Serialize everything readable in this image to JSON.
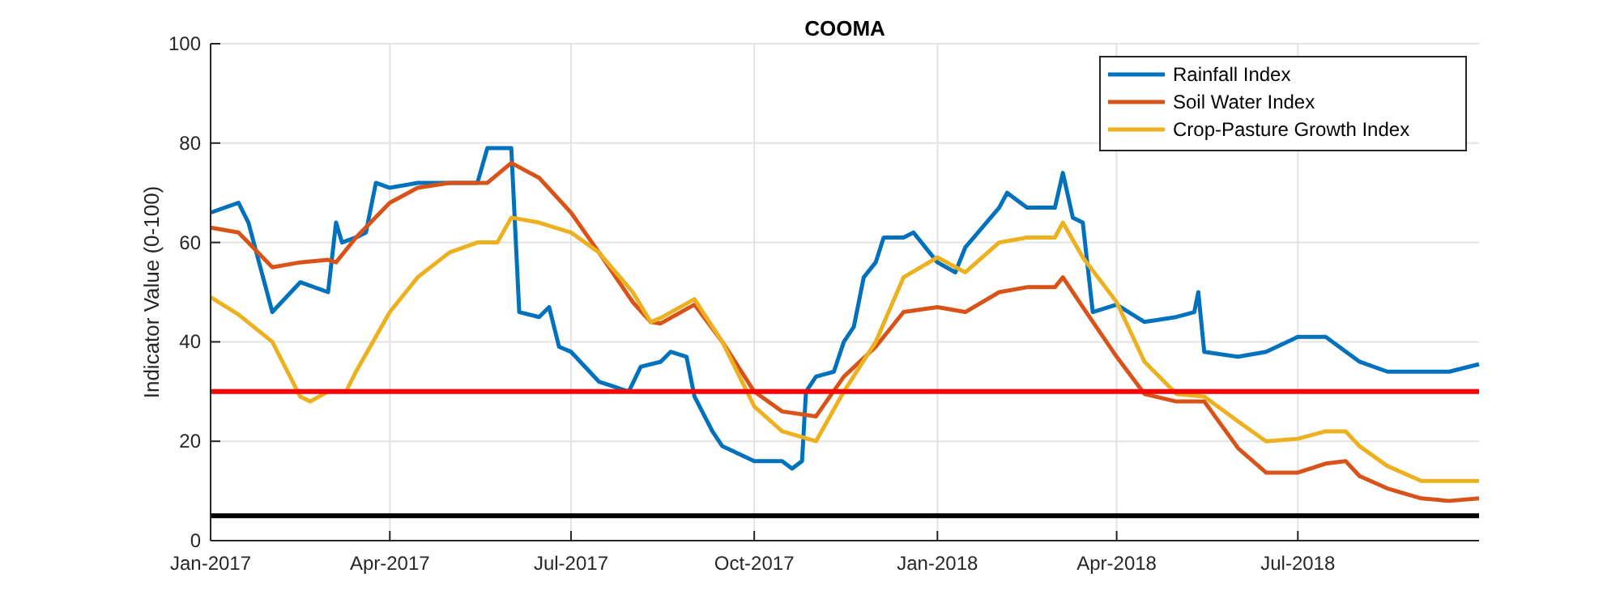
{
  "chart_data": {
    "type": "line",
    "title": "COOMA",
    "ylabel": "Indicator Value (0-100)",
    "xlim": [
      "2017-01-01",
      "2018-09-30"
    ],
    "xticks": [
      {
        "value": "2017-01-01",
        "label": "Jan-2017"
      },
      {
        "value": "2017-04-01",
        "label": "Apr-2017"
      },
      {
        "value": "2017-07-01",
        "label": "Jul-2017"
      },
      {
        "value": "2017-10-01",
        "label": "Oct-2017"
      },
      {
        "value": "2018-01-01",
        "label": "Jan-2018"
      },
      {
        "value": "2018-04-01",
        "label": "Apr-2018"
      },
      {
        "value": "2018-07-01",
        "label": "Jul-2018"
      }
    ],
    "ylim": [
      0,
      100
    ],
    "yticks": [
      0,
      20,
      40,
      60,
      80,
      100
    ],
    "grid": true,
    "legend": "top right",
    "line_style": "solid",
    "series": [
      {
        "name": "Rainfall Index",
        "color": "#0072bd",
        "x": [
          "2017-01-01",
          "2017-01-15",
          "2017-01-20",
          "2017-02-01",
          "2017-02-15",
          "2017-03-01",
          "2017-03-05",
          "2017-03-08",
          "2017-03-15",
          "2017-03-20",
          "2017-03-25",
          "2017-04-01",
          "2017-04-15",
          "2017-05-01",
          "2017-05-15",
          "2017-05-20",
          "2017-06-01",
          "2017-06-05",
          "2017-06-15",
          "2017-06-20",
          "2017-06-25",
          "2017-07-01",
          "2017-07-15",
          "2017-07-30",
          "2017-08-05",
          "2017-08-15",
          "2017-08-20",
          "2017-08-28",
          "2017-09-01",
          "2017-09-10",
          "2017-09-15",
          "2017-10-01",
          "2017-10-15",
          "2017-10-20",
          "2017-10-25",
          "2017-10-27",
          "2017-11-01",
          "2017-11-10",
          "2017-11-15",
          "2017-11-20",
          "2017-11-25",
          "2017-12-01",
          "2017-12-05",
          "2017-12-15",
          "2017-12-20",
          "2018-01-01",
          "2018-01-10",
          "2018-01-15",
          "2018-02-01",
          "2018-02-05",
          "2018-02-15",
          "2018-03-01",
          "2018-03-05",
          "2018-03-10",
          "2018-03-15",
          "2018-03-20",
          "2018-04-01",
          "2018-04-15",
          "2018-05-01",
          "2018-05-10",
          "2018-05-12",
          "2018-05-15",
          "2018-06-01",
          "2018-06-15",
          "2018-07-01",
          "2018-07-15",
          "2018-08-01",
          "2018-08-15",
          "2018-09-01",
          "2018-09-15",
          "2018-09-30"
        ],
        "values": [
          66,
          68,
          64,
          46,
          52,
          50,
          64,
          60,
          61,
          62,
          72,
          71,
          72,
          72,
          72,
          79,
          79,
          46,
          45,
          47,
          39,
          38,
          32,
          30,
          35,
          36,
          38,
          37,
          29,
          22,
          19,
          16,
          16,
          14.5,
          16,
          30,
          33,
          34,
          40,
          43,
          53,
          56,
          61,
          61,
          62,
          56,
          54,
          59,
          67,
          70,
          67,
          67,
          74,
          65,
          64,
          46,
          47.5,
          44,
          45,
          46,
          50,
          38,
          37,
          38,
          41,
          41,
          36,
          34,
          34,
          34,
          35.5
        ]
      },
      {
        "name": "Soil Water Index",
        "color": "#d95319",
        "x": [
          "2017-01-01",
          "2017-01-15",
          "2017-02-01",
          "2017-02-15",
          "2017-03-01",
          "2017-03-05",
          "2017-03-15",
          "2017-04-01",
          "2017-04-15",
          "2017-05-01",
          "2017-05-15",
          "2017-05-20",
          "2017-06-01",
          "2017-06-15",
          "2017-07-01",
          "2017-07-15",
          "2017-08-01",
          "2017-08-10",
          "2017-08-15",
          "2017-09-01",
          "2017-09-15",
          "2017-10-01",
          "2017-10-15",
          "2017-11-01",
          "2017-11-15",
          "2017-12-01",
          "2017-12-15",
          "2018-01-01",
          "2018-01-15",
          "2018-02-01",
          "2018-02-15",
          "2018-03-01",
          "2018-03-05",
          "2018-03-15",
          "2018-04-01",
          "2018-04-15",
          "2018-05-01",
          "2018-05-15",
          "2018-06-01",
          "2018-06-15",
          "2018-07-01",
          "2018-07-15",
          "2018-07-25",
          "2018-08-01",
          "2018-08-15",
          "2018-09-01",
          "2018-09-15",
          "2018-09-30"
        ],
        "values": [
          63,
          62,
          55,
          56,
          56.5,
          56,
          61,
          68,
          71,
          72,
          72,
          72,
          76,
          73,
          66,
          58,
          48,
          44,
          43.7,
          47.5,
          40,
          30,
          26,
          25,
          33,
          39,
          46,
          47,
          46,
          50,
          51,
          51,
          53,
          47,
          37,
          29.5,
          28,
          28,
          18.6,
          13.7,
          13.7,
          15.5,
          16,
          13,
          10.5,
          8.5,
          8,
          8.5
        ]
      },
      {
        "name": "Crop-Pasture Growth Index",
        "color": "#edb120",
        "x": [
          "2017-01-01",
          "2017-01-15",
          "2017-02-01",
          "2017-02-15",
          "2017-02-20",
          "2017-03-01",
          "2017-03-10",
          "2017-03-15",
          "2017-04-01",
          "2017-04-15",
          "2017-05-01",
          "2017-05-15",
          "2017-05-25",
          "2017-06-01",
          "2017-06-15",
          "2017-07-01",
          "2017-07-15",
          "2017-08-01",
          "2017-08-10",
          "2017-08-15",
          "2017-09-01",
          "2017-09-15",
          "2017-10-01",
          "2017-10-15",
          "2017-11-01",
          "2017-11-15",
          "2017-12-01",
          "2017-12-15",
          "2018-01-01",
          "2018-01-15",
          "2018-02-01",
          "2018-02-15",
          "2018-03-01",
          "2018-03-05",
          "2018-03-15",
          "2018-04-01",
          "2018-04-15",
          "2018-05-01",
          "2018-05-15",
          "2018-06-01",
          "2018-06-15",
          "2018-07-01",
          "2018-07-15",
          "2018-07-25",
          "2018-08-01",
          "2018-08-15",
          "2018-09-01",
          "2018-09-15",
          "2018-09-30"
        ],
        "values": [
          49,
          45.5,
          40,
          29,
          28,
          30,
          30,
          34,
          46,
          53,
          58,
          60,
          60,
          65,
          64,
          62,
          58,
          50,
          44,
          44.8,
          48.6,
          40,
          27,
          22,
          20,
          30,
          40,
          53,
          57,
          54,
          60,
          61,
          61,
          64,
          57,
          48,
          36,
          29.5,
          29,
          24,
          20,
          20.5,
          22,
          22,
          19,
          15,
          12,
          12,
          12
        ]
      }
    ],
    "ref_lines": [
      {
        "axis": "y",
        "value": 30,
        "color": "#ff0000"
      },
      {
        "axis": "y",
        "value": 5,
        "color": "#000000"
      }
    ]
  }
}
